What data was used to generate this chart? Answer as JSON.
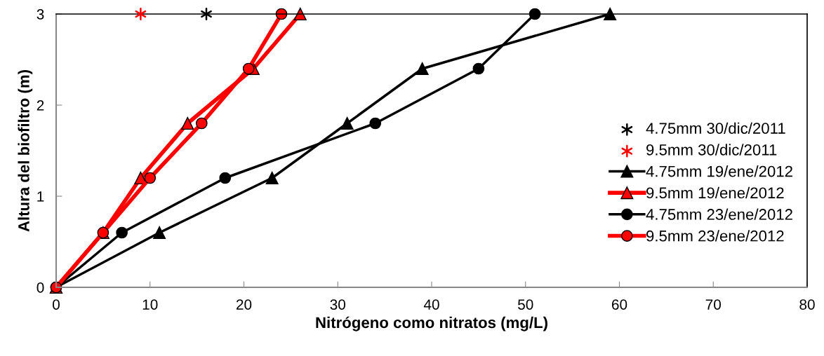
{
  "chart_data": {
    "type": "line",
    "xlabel": "Nitrógeno como nitratos (mg/L)",
    "ylabel": "Altura del biofiltro (m)",
    "xlim": [
      0,
      80
    ],
    "xticks": [
      0,
      10,
      20,
      30,
      40,
      50,
      60,
      70,
      80
    ],
    "ylim": [
      0,
      3
    ],
    "yticks": [
      0,
      1,
      2,
      3
    ],
    "grid": false,
    "legend": "right",
    "series": [
      {
        "name": "4.75mm 30/dic/2011",
        "type": "scatter",
        "color": "#000000",
        "marker": "cross",
        "x": [
          16
        ],
        "values": [
          3
        ]
      },
      {
        "name": "9.5mm 30/dic/2011",
        "type": "scatter",
        "color": "#ff0000",
        "marker": "cross",
        "x": [
          9
        ],
        "values": [
          3
        ]
      },
      {
        "name": "4.75mm 19/ene/2012",
        "color": "#000000",
        "marker": "triangle",
        "x": [
          0,
          11,
          23,
          31,
          39,
          59
        ],
        "values": [
          0,
          0.6,
          1.2,
          1.8,
          2.4,
          3
        ]
      },
      {
        "name": "9.5mm 19/ene/2012",
        "color": "#ff0000",
        "marker": "triangle",
        "x": [
          0,
          5,
          9,
          14,
          21,
          26
        ],
        "values": [
          0,
          0.6,
          1.2,
          1.8,
          2.4,
          3
        ]
      },
      {
        "name": "4.75mm 23/ene/2012",
        "color": "#000000",
        "marker": "circle",
        "x": [
          0,
          7,
          18,
          34,
          45,
          51
        ],
        "values": [
          0,
          0.6,
          1.2,
          1.8,
          2.4,
          3
        ]
      },
      {
        "name": "9.5mm 23/ene/2012",
        "color": "#ff0000",
        "marker": "circle",
        "x": [
          0,
          5,
          10,
          15.5,
          20.5,
          24
        ],
        "values": [
          0,
          0.6,
          1.2,
          1.8,
          2.4,
          3
        ]
      }
    ]
  }
}
